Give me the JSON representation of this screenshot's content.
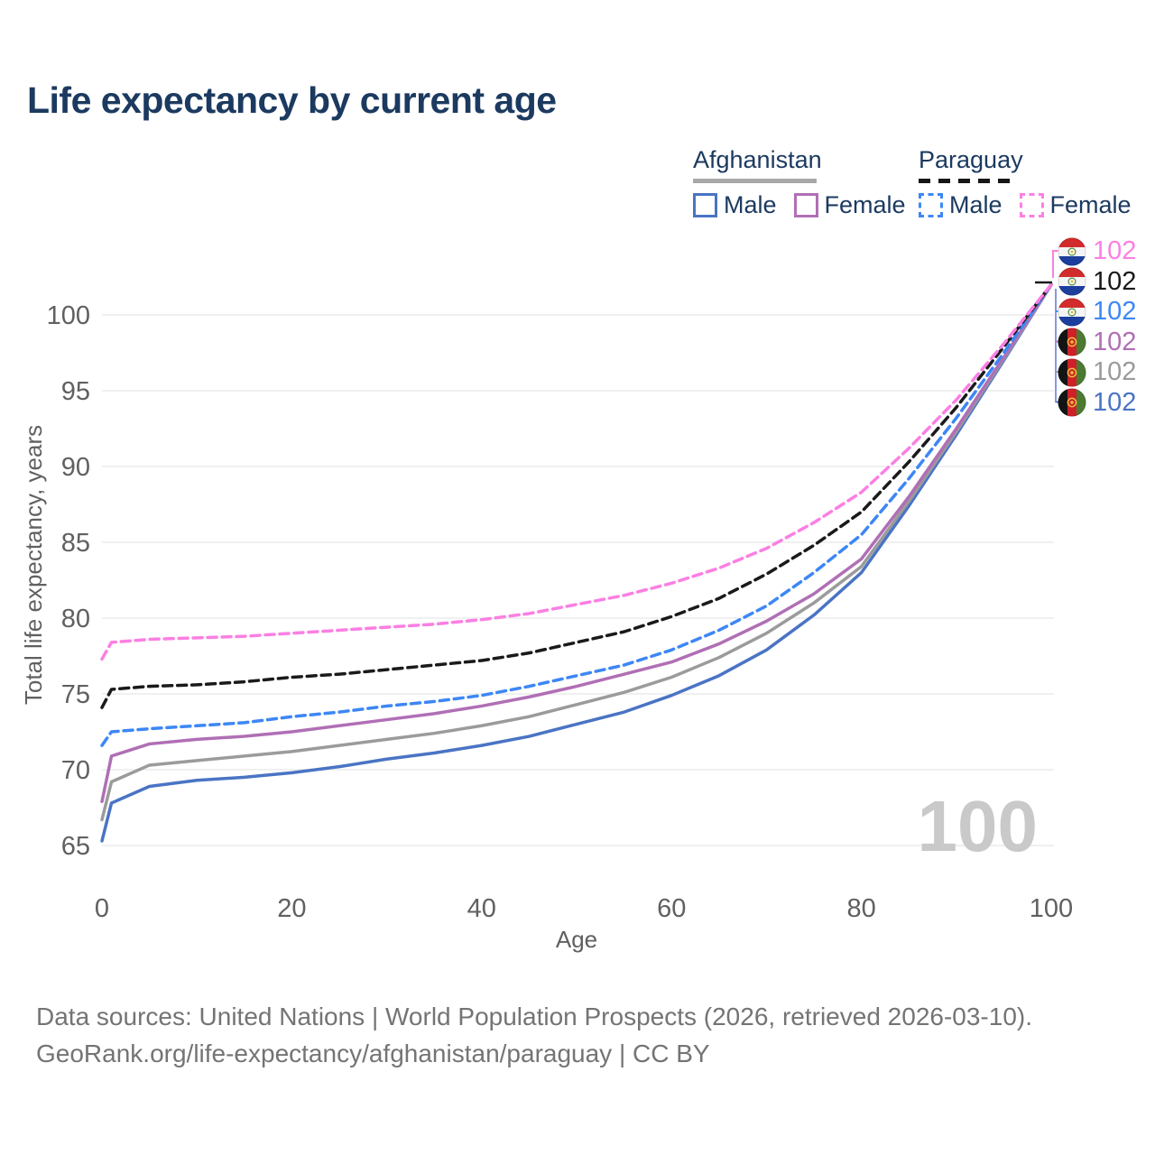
{
  "title": "Life expectancy by current age",
  "legend": {
    "groups": [
      {
        "label": "Afghanistan",
        "line_style": "solid",
        "underline_color": "#a8a8a8",
        "items": [
          {
            "label": "Male",
            "color": "#4a74c4"
          },
          {
            "label": "Female",
            "color": "#b06fb5"
          }
        ]
      },
      {
        "label": "Paraguay",
        "line_style": "dashed",
        "underline_color": "#161616",
        "items": [
          {
            "label": "Male",
            "color": "#3d87f5"
          },
          {
            "label": "Female",
            "color": "#fb7fe3"
          }
        ]
      }
    ]
  },
  "chart_data": {
    "type": "line",
    "title": "Life expectancy by current age",
    "xlabel": "Age",
    "ylabel": "Total life expectancy, years",
    "xlim": [
      0,
      100
    ],
    "ylim": [
      65,
      102.5
    ],
    "x_ticks": [
      0,
      20,
      40,
      60,
      80,
      100
    ],
    "y_ticks": [
      65,
      70,
      75,
      80,
      85,
      90,
      95,
      100
    ],
    "grid": "horizontal",
    "legend_position": "top-right",
    "x": [
      0,
      1,
      5,
      10,
      15,
      20,
      25,
      30,
      35,
      40,
      45,
      50,
      55,
      60,
      65,
      70,
      75,
      80,
      85,
      90,
      95,
      100
    ],
    "series": [
      {
        "name": "Afghanistan Male",
        "country": "Afghanistan",
        "sex": "Male",
        "color": "#4a74c4",
        "dash": "solid",
        "values": [
          65.3,
          67.8,
          68.9,
          69.3,
          69.5,
          69.8,
          70.2,
          70.7,
          71.1,
          71.6,
          72.2,
          73.0,
          73.8,
          74.9,
          76.2,
          77.9,
          80.2,
          83.0,
          87.4,
          92.1,
          97.0,
          102
        ]
      },
      {
        "name": "Afghanistan Both sexes",
        "country": "Afghanistan",
        "sex": "Both sexes",
        "color": "#9b9b9b",
        "dash": "solid",
        "values": [
          66.7,
          69.2,
          70.3,
          70.6,
          70.9,
          71.2,
          71.6,
          72.0,
          72.4,
          72.9,
          73.5,
          74.3,
          75.1,
          76.1,
          77.4,
          79.0,
          81.0,
          83.4,
          87.7,
          92.3,
          97.1,
          102
        ]
      },
      {
        "name": "Afghanistan Female",
        "country": "Afghanistan",
        "sex": "Female",
        "color": "#b06fb5",
        "dash": "solid",
        "values": [
          67.9,
          70.9,
          71.7,
          72.0,
          72.2,
          72.5,
          72.9,
          73.3,
          73.7,
          74.2,
          74.8,
          75.5,
          76.3,
          77.1,
          78.3,
          79.8,
          81.6,
          83.9,
          88.0,
          92.5,
          97.2,
          102
        ]
      },
      {
        "name": "Paraguay Male",
        "country": "Paraguay",
        "sex": "Male",
        "color": "#3d87f5",
        "dash": "dashed",
        "values": [
          71.6,
          72.5,
          72.7,
          72.9,
          73.1,
          73.5,
          73.8,
          74.2,
          74.5,
          74.9,
          75.5,
          76.2,
          76.9,
          77.9,
          79.2,
          80.8,
          83.0,
          85.5,
          89.2,
          93.2,
          97.5,
          102
        ]
      },
      {
        "name": "Paraguay Both sexes",
        "country": "Paraguay",
        "sex": "Both sexes",
        "color": "#1a1a1a",
        "dash": "dashed",
        "values": [
          74.1,
          75.3,
          75.5,
          75.6,
          75.8,
          76.1,
          76.3,
          76.6,
          76.9,
          77.2,
          77.7,
          78.4,
          79.1,
          80.1,
          81.3,
          82.9,
          84.8,
          87.0,
          90.3,
          93.9,
          97.9,
          102
        ]
      },
      {
        "name": "Paraguay Female",
        "country": "Paraguay",
        "sex": "Female",
        "color": "#fb7fe3",
        "dash": "dashed",
        "values": [
          77.3,
          78.4,
          78.6,
          78.7,
          78.8,
          79.0,
          79.2,
          79.4,
          79.6,
          79.9,
          80.3,
          80.9,
          81.5,
          82.3,
          83.3,
          84.6,
          86.3,
          88.3,
          91.2,
          94.4,
          98.1,
          102
        ]
      }
    ]
  },
  "end_labels": [
    {
      "country": "Paraguay",
      "sex": "Female",
      "value": "102",
      "color": "#fb7fe3"
    },
    {
      "country": "Paraguay",
      "sex": "Both sexes",
      "value": "102",
      "color": "#1a1a1a"
    },
    {
      "country": "Paraguay",
      "sex": "Male",
      "value": "102",
      "color": "#3d87f5"
    },
    {
      "country": "Afghanistan",
      "sex": "Female",
      "value": "102",
      "color": "#b06fb5"
    },
    {
      "country": "Afghanistan",
      "sex": "Both sexes",
      "value": "102",
      "color": "#9b9b9b"
    },
    {
      "country": "Afghanistan",
      "sex": "Male",
      "value": "102",
      "color": "#4a74c4"
    }
  ],
  "watermark": "100",
  "footer": {
    "line1": "Data sources: United Nations | World Population Prospects (2026, retrieved 2026-03-10).",
    "line2": "GeoRank.org/life-expectancy/afghanistan/paraguay | CC BY"
  }
}
